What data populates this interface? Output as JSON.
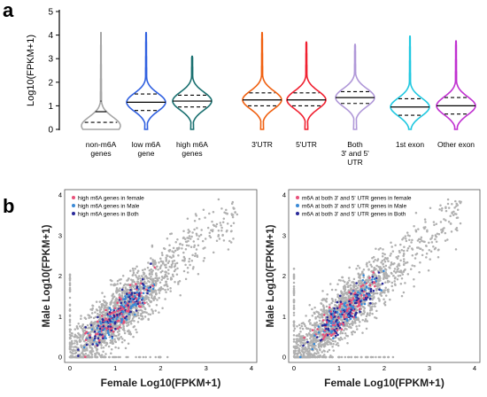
{
  "panels": {
    "a": "a",
    "b": "b"
  },
  "chart_data": [
    {
      "type": "violin",
      "ylabel": "Log10(FPKM+1)",
      "ylim": [
        0,
        5
      ],
      "yticks": [
        "0",
        "1",
        "2",
        "3",
        "4",
        "5"
      ],
      "groups": [
        {
          "label": [
            "non-m6A",
            "genes"
          ],
          "color": "#a6a6a6",
          "max": 4.1,
          "median": 0.75,
          "q1": 0.3,
          "q3": 1.2,
          "mode": 0.15
        },
        {
          "label": [
            "low m6A",
            "gene"
          ],
          "color": "#3060e0",
          "max": 4.1,
          "median": 1.15,
          "q1": 0.8,
          "q3": 1.5,
          "mode": 1.15
        },
        {
          "label": [
            "high m6A",
            "genes"
          ],
          "color": "#1a7070",
          "max": 3.1,
          "median": 1.2,
          "q1": 0.95,
          "q3": 1.45,
          "mode": 1.2
        },
        {
          "label": [
            "3'UTR"
          ],
          "color": "#f06010",
          "max": 4.1,
          "median": 1.25,
          "q1": 1.0,
          "q3": 1.55,
          "mode": 1.25
        },
        {
          "label": [
            "5'UTR"
          ],
          "color": "#f02030",
          "max": 3.7,
          "median": 1.25,
          "q1": 1.0,
          "q3": 1.55,
          "mode": 1.25
        },
        {
          "label": [
            "Both",
            "3' and 5'",
            "UTR"
          ],
          "color": "#b098d8",
          "max": 3.6,
          "median": 1.35,
          "q1": 1.1,
          "q3": 1.6,
          "mode": 1.35
        },
        {
          "label": [
            "1st exon"
          ],
          "color": "#20c8e0",
          "max": 3.95,
          "median": 0.95,
          "q1": 0.6,
          "q3": 1.3,
          "mode": 0.95
        },
        {
          "label": [
            "Other exon"
          ],
          "color": "#c030d0",
          "max": 3.75,
          "median": 1.0,
          "q1": 0.65,
          "q3": 1.35,
          "mode": 1.0
        }
      ]
    },
    {
      "type": "scatter",
      "xlabel": "Female Log10(FPKM+1)",
      "ylabel": "Male Log10(FPKM+1)",
      "xlim": [
        0,
        4
      ],
      "ylim": [
        0,
        4
      ],
      "xticks": [
        "0",
        "1",
        "2",
        "3",
        "4"
      ],
      "yticks": [
        "0",
        "1",
        "2",
        "3",
        "4"
      ],
      "legend": [
        {
          "label": "high m6A genes in female",
          "color": "#e8507a"
        },
        {
          "label": "high m6A genes in Male",
          "color": "#3a8ad6"
        },
        {
          "label": "high m6A genes in Both",
          "color": "#2a2a9a"
        }
      ],
      "background_color": "#b0b0b0"
    },
    {
      "type": "scatter",
      "xlabel": "Female Log10(FPKM+1)",
      "ylabel": "Male Log10(FPKM+1)",
      "xlim": [
        0,
        4
      ],
      "ylim": [
        0,
        4
      ],
      "xticks": [
        "0",
        "1",
        "2",
        "3",
        "4"
      ],
      "yticks": [
        "0",
        "1",
        "2",
        "3",
        "4"
      ],
      "legend": [
        {
          "label": "m6A  at both 3' and 5' UTR genes in female",
          "color": "#e8507a"
        },
        {
          "label": "m6A  at both 3' and 5' UTR genes in Male",
          "color": "#3a8ad6"
        },
        {
          "label": "m6A  at both 3' and 5' UTR genes in Both",
          "color": "#2a2a9a"
        }
      ],
      "background_color": "#b0b0b0"
    }
  ]
}
